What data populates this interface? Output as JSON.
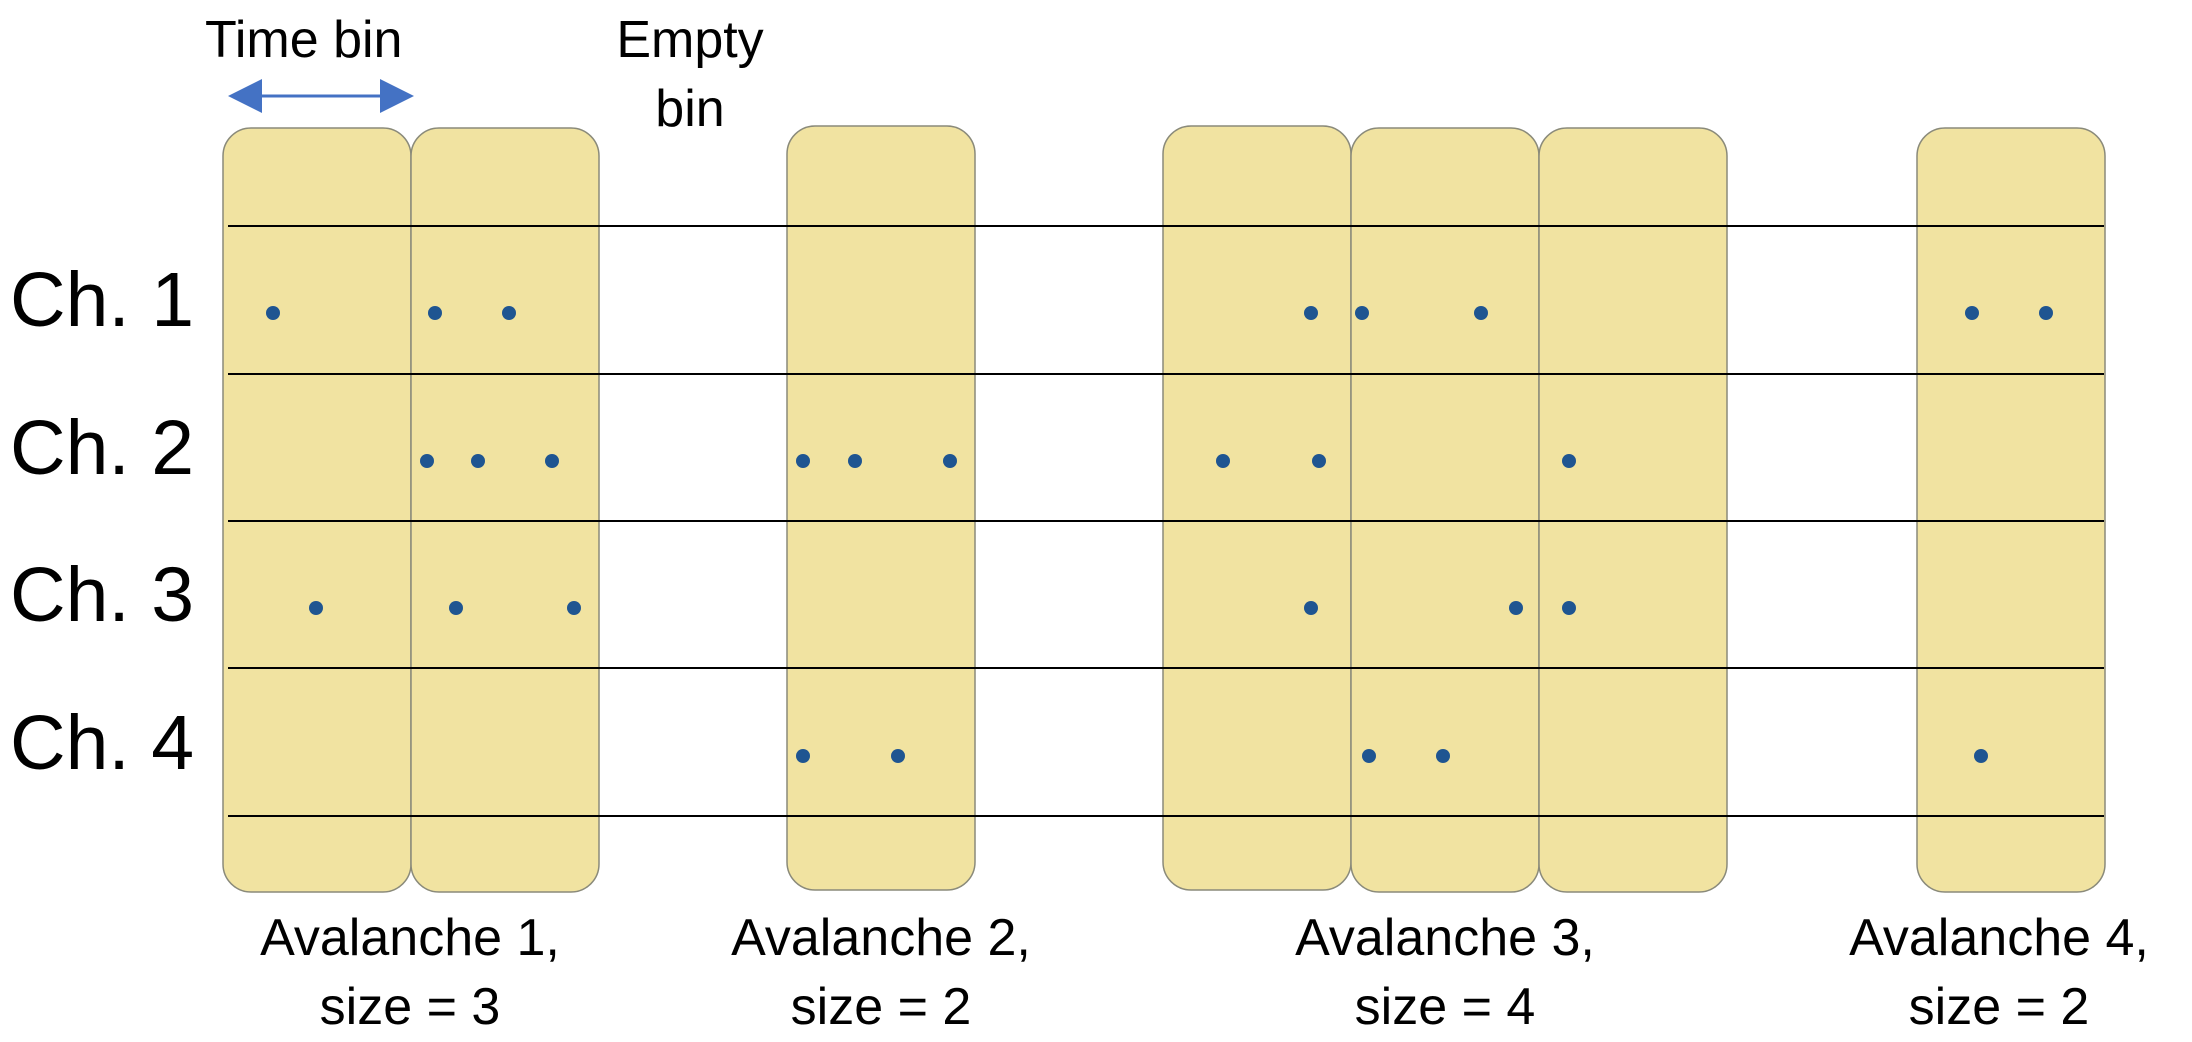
{
  "annotations": {
    "time_bin": "Time bin",
    "empty_bin_line1": "Empty",
    "empty_bin_line2": "bin"
  },
  "channels": [
    "Ch. 1",
    "Ch. 2",
    "Ch. 3",
    "Ch. 4"
  ],
  "avalanches": [
    {
      "line1": "Avalanche 1,",
      "line2": "size = 3"
    },
    {
      "line1": "Avalanche 2,",
      "line2": "size = 2"
    },
    {
      "line1": "Avalanche 3,",
      "line2": "size = 4"
    },
    {
      "line1": "Avalanche 4,",
      "line2": "size = 2"
    }
  ],
  "colors": {
    "bin_fill": "#f1e3a1",
    "bin_stroke": "#8a8a7a",
    "spike": "#1f5591",
    "arrow": "#4472c4",
    "grid_line": "#000000"
  }
}
